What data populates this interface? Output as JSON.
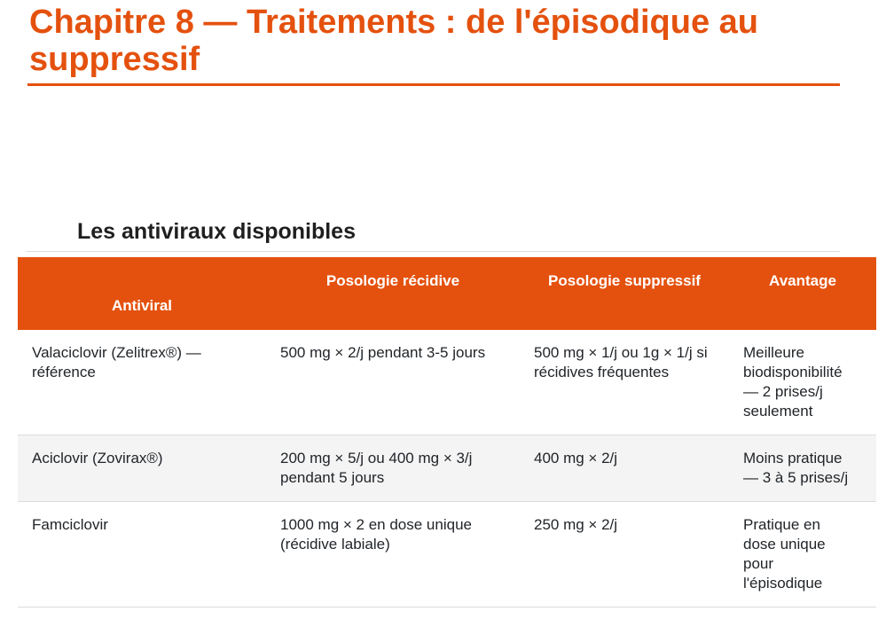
{
  "header": {
    "title": "Chapitre 8 — Traitements : de l'épisodique au suppressif"
  },
  "section": {
    "heading": "Les antiviraux disponibles"
  },
  "table": {
    "columns": [
      "Antiviral",
      "Posologie récidive",
      "Posologie suppressif",
      "Avantage"
    ],
    "rows": [
      [
        "Valaciclovir (Zelitrex®) — référence",
        "500 mg × 2/j pendant 3-5 jours",
        "500 mg × 1/j ou 1g × 1/j si récidives fréquentes",
        "Meilleure biodisponibilité — 2 prises/j seulement"
      ],
      [
        "Aciclovir (Zovirax®)",
        "200 mg × 5/j ou 400 mg × 3/j pendant 5 jours",
        "400 mg × 2/j",
        "Moins pratique — 3 à 5 prises/j"
      ],
      [
        "Famciclovir",
        "1000 mg × 2 en dose unique (récidive labiale)",
        "250 mg × 2/j",
        "Pratique en dose unique pour l'épisodique"
      ]
    ]
  },
  "colors": {
    "accent": "#e4510e",
    "header_text": "#ffffff",
    "row_alt_bg": "#f4f4f4",
    "border": "#dcdcdc",
    "body_text": "#212529"
  }
}
